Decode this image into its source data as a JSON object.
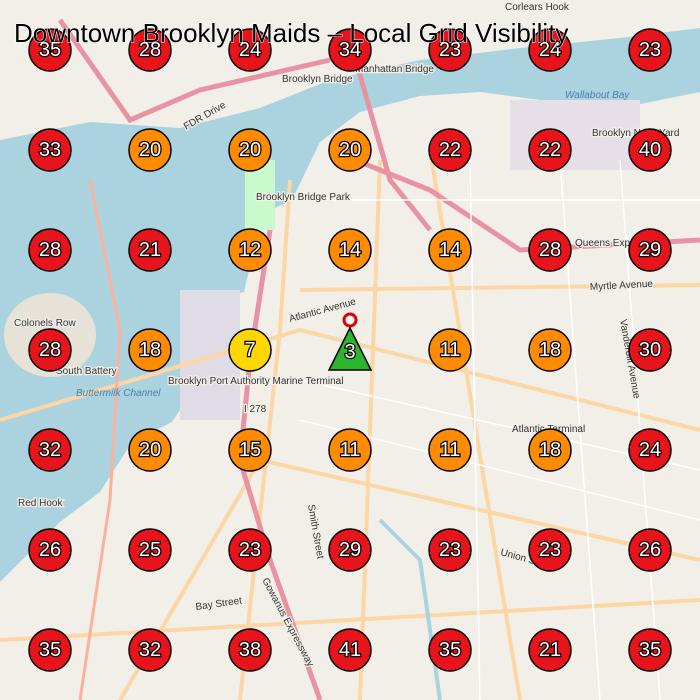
{
  "title": "Downtown Brooklyn Maids – Local Grid Visibility",
  "map_labels": [
    "Corlears Hook",
    "Manhattan Bridge",
    "Brooklyn Bridge",
    "Wallabout Bay",
    "Brooklyn Navy Yard",
    "FDR Drive",
    "Brooklyn Bridge Park",
    "Queens Expressway",
    "Myrtle Avenue",
    "Atlantic Avenue",
    "Colonels Row",
    "South Battery",
    "Buttermilk Channel",
    "Brooklyn Port Authority Marine Terminal",
    "I 278",
    "Atlantic Terminal",
    "Red Hook",
    "Union Street",
    "Bay Street",
    "Gowanus Expressway",
    "Smith Street",
    "Vanderbilt Avenue"
  ],
  "grid": [
    [
      {
        "rank": 35,
        "color": "#e8141b"
      },
      {
        "rank": 28,
        "color": "#e8141b"
      },
      {
        "rank": 24,
        "color": "#e8141b"
      },
      {
        "rank": 34,
        "color": "#e8141b"
      },
      {
        "rank": 23,
        "color": "#e8141b"
      },
      {
        "rank": 24,
        "color": "#e8141b"
      },
      {
        "rank": 23,
        "color": "#e8141b"
      }
    ],
    [
      {
        "rank": 33,
        "color": "#e8141b"
      },
      {
        "rank": 20,
        "color": "#ff8c00"
      },
      {
        "rank": 20,
        "color": "#ff8c00"
      },
      {
        "rank": 20,
        "color": "#ff8c00"
      },
      {
        "rank": 22,
        "color": "#e8141b"
      },
      {
        "rank": 22,
        "color": "#e8141b"
      },
      {
        "rank": 40,
        "color": "#e8141b"
      }
    ],
    [
      {
        "rank": 28,
        "color": "#e8141b"
      },
      {
        "rank": 21,
        "color": "#e8141b"
      },
      {
        "rank": 12,
        "color": "#ff8c00"
      },
      {
        "rank": 14,
        "color": "#ff8c00"
      },
      {
        "rank": 14,
        "color": "#ff8c00"
      },
      {
        "rank": 28,
        "color": "#e8141b"
      },
      {
        "rank": 29,
        "color": "#e8141b"
      }
    ],
    [
      {
        "rank": 28,
        "color": "#e8141b"
      },
      {
        "rank": 18,
        "color": "#ff8c00"
      },
      {
        "rank": 7,
        "color": "#ffd700"
      },
      {
        "rank": 3,
        "color": "#2db52d",
        "marker": "triangle"
      },
      {
        "rank": 11,
        "color": "#ff8c00"
      },
      {
        "rank": 18,
        "color": "#ff8c00"
      },
      {
        "rank": 30,
        "color": "#e8141b"
      }
    ],
    [
      {
        "rank": 32,
        "color": "#e8141b"
      },
      {
        "rank": 20,
        "color": "#ff8c00"
      },
      {
        "rank": 15,
        "color": "#ff8c00"
      },
      {
        "rank": 11,
        "color": "#ff8c00"
      },
      {
        "rank": 11,
        "color": "#ff8c00"
      },
      {
        "rank": 18,
        "color": "#ff8c00"
      },
      {
        "rank": 24,
        "color": "#e8141b"
      }
    ],
    [
      {
        "rank": 26,
        "color": "#e8141b"
      },
      {
        "rank": 25,
        "color": "#e8141b"
      },
      {
        "rank": 23,
        "color": "#e8141b"
      },
      {
        "rank": 29,
        "color": "#e8141b"
      },
      {
        "rank": 23,
        "color": "#e8141b"
      },
      {
        "rank": 23,
        "color": "#e8141b"
      },
      {
        "rank": 26,
        "color": "#e8141b"
      }
    ],
    [
      {
        "rank": 35,
        "color": "#e8141b"
      },
      {
        "rank": 32,
        "color": "#e8141b"
      },
      {
        "rank": 38,
        "color": "#e8141b"
      },
      {
        "rank": 41,
        "color": "#e8141b"
      },
      {
        "rank": 35,
        "color": "#e8141b"
      },
      {
        "rank": 21,
        "color": "#e8141b"
      },
      {
        "rank": 35,
        "color": "#e8141b"
      }
    ]
  ]
}
